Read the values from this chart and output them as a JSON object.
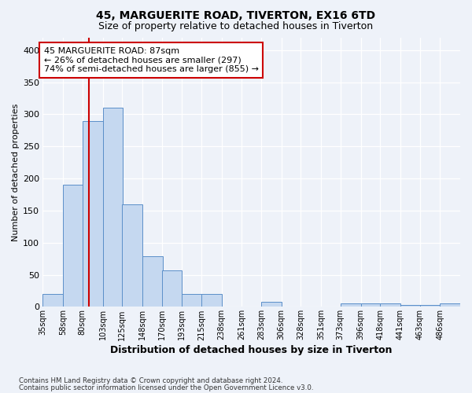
{
  "title1": "45, MARGUERITE ROAD, TIVERTON, EX16 6TD",
  "title2": "Size of property relative to detached houses in Tiverton",
  "xlabel": "Distribution of detached houses by size in Tiverton",
  "ylabel": "Number of detached properties",
  "bin_labels": [
    "35sqm",
    "58sqm",
    "80sqm",
    "103sqm",
    "125sqm",
    "148sqm",
    "170sqm",
    "193sqm",
    "215sqm",
    "238sqm",
    "261sqm",
    "283sqm",
    "306sqm",
    "328sqm",
    "351sqm",
    "373sqm",
    "396sqm",
    "418sqm",
    "441sqm",
    "463sqm",
    "486sqm"
  ],
  "bin_left_edges": [
    35,
    58,
    80,
    103,
    125,
    148,
    170,
    193,
    215,
    238,
    261,
    283,
    306,
    328,
    351,
    373,
    396,
    418,
    441,
    463,
    486
  ],
  "bin_width": 23,
  "bar_heights": [
    20,
    190,
    290,
    310,
    160,
    79,
    57,
    20,
    20,
    0,
    0,
    8,
    0,
    0,
    0,
    6,
    6,
    5,
    3,
    3,
    5
  ],
  "bar_color": "#c5d8f0",
  "bar_edge_color": "#5b8fc9",
  "property_size": 87,
  "vline_color": "#cc0000",
  "annotation_text": "45 MARGUERITE ROAD: 87sqm\n← 26% of detached houses are smaller (297)\n74% of semi-detached houses are larger (855) →",
  "annotation_box_color": "#ffffff",
  "annotation_box_edge_color": "#cc0000",
  "ylim": [
    0,
    420
  ],
  "yticks": [
    0,
    50,
    100,
    150,
    200,
    250,
    300,
    350,
    400
  ],
  "footer_line1": "Contains HM Land Registry data © Crown copyright and database right 2024.",
  "footer_line2": "Contains public sector information licensed under the Open Government Licence v3.0.",
  "bg_color": "#eef2f9",
  "grid_color": "#ffffff"
}
